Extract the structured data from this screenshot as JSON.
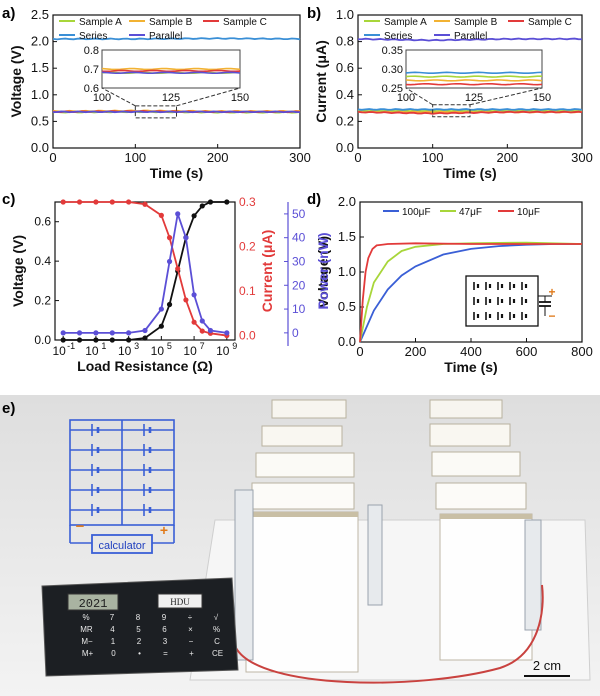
{
  "panels": {
    "a": {
      "label": "a)"
    },
    "b": {
      "label": "b)"
    },
    "c": {
      "label": "c)"
    },
    "d": {
      "label": "d)"
    },
    "e": {
      "label": "e)"
    }
  },
  "chart_data": [
    {
      "id": "a",
      "type": "line",
      "xlabel": "Time (s)",
      "ylabel": "Voltage (V)",
      "xlim": [
        0,
        300
      ],
      "ylim": [
        0,
        2.5
      ],
      "xticks": [
        0,
        100,
        200,
        300
      ],
      "yticks": [
        0.0,
        0.5,
        1.0,
        1.5,
        2.0,
        2.5
      ],
      "yticklabels": [
        "0.0",
        "0.5",
        "1.0",
        "1.5",
        "2.0",
        "2.5"
      ],
      "legend": [
        "Sample A",
        "Sample B",
        "Sample C",
        "Series",
        "Parallel"
      ],
      "series": [
        {
          "name": "Sample A",
          "color": "#a8d63a",
          "values": [
            0.67,
            0.68,
            0.67,
            0.67
          ]
        },
        {
          "name": "Sample B",
          "color": "#f2b233",
          "values": [
            0.69,
            0.7,
            0.69,
            0.69
          ]
        },
        {
          "name": "Sample C",
          "color": "#e23a3a",
          "values": [
            0.68,
            0.69,
            0.68,
            0.68
          ]
        },
        {
          "name": "Series",
          "color": "#3a8fd6",
          "values": [
            2.05,
            2.05,
            2.06,
            2.05
          ]
        },
        {
          "name": "Parallel",
          "color": "#5b4fd6",
          "values": [
            0.68,
            0.68,
            0.68,
            0.68
          ]
        }
      ],
      "x": [
        0,
        100,
        200,
        300
      ],
      "inset": {
        "xlim": [
          100,
          150
        ],
        "ylim": [
          0.6,
          0.8
        ],
        "xticks": [
          100,
          125,
          150
        ],
        "yticks": [
          0.6,
          0.7,
          0.8
        ],
        "yticklabels": [
          "0.6",
          "0.7",
          "0.8"
        ]
      }
    },
    {
      "id": "b",
      "type": "line",
      "xlabel": "Time (s)",
      "ylabel": "Current (μA)",
      "xlim": [
        0,
        300
      ],
      "ylim": [
        0,
        1.0
      ],
      "xticks": [
        0,
        100,
        200,
        300
      ],
      "yticks": [
        0.0,
        0.2,
        0.4,
        0.6,
        0.8,
        1.0
      ],
      "yticklabels": [
        "0.0",
        "0.2",
        "0.4",
        "0.6",
        "0.8",
        "1.0"
      ],
      "legend": [
        "Sample A",
        "Sample B",
        "Sample C",
        "Series",
        "Parallel"
      ],
      "series": [
        {
          "name": "Sample A",
          "color": "#a8d63a",
          "values": [
            0.28,
            0.28,
            0.28,
            0.28
          ]
        },
        {
          "name": "Sample B",
          "color": "#f2b233",
          "values": [
            0.27,
            0.27,
            0.27,
            0.27
          ]
        },
        {
          "name": "Sample C",
          "color": "#e23a3a",
          "values": [
            0.27,
            0.26,
            0.27,
            0.27
          ]
        },
        {
          "name": "Series",
          "color": "#3a8fd6",
          "values": [
            0.29,
            0.29,
            0.29,
            0.29
          ]
        },
        {
          "name": "Parallel",
          "color": "#5b4fd6",
          "values": [
            0.82,
            0.81,
            0.82,
            0.82
          ]
        }
      ],
      "x": [
        0,
        100,
        200,
        300
      ],
      "inset": {
        "xlim": [
          100,
          150
        ],
        "ylim": [
          0.25,
          0.35
        ],
        "xticks": [
          100,
          125,
          150
        ],
        "yticks": [
          0.25,
          0.3,
          0.35
        ],
        "yticklabels": [
          "0.25",
          "0.30",
          "0.35"
        ]
      }
    },
    {
      "id": "c",
      "type": "line",
      "xlabel": "Load Resistance (Ω)",
      "ylabel": "Voltage (V)",
      "ylabel_right": "Current (μA)",
      "ylabel_right2": "Power (nW)",
      "x_log_exponents": [
        -1,
        1,
        3,
        5,
        7,
        9
      ],
      "ylim": [
        0,
        0.7
      ],
      "yticks": [
        0.0,
        0.2,
        0.4,
        0.6
      ],
      "yticklabels": [
        "0.0",
        "0.2",
        "0.4",
        "0.6"
      ],
      "ylim_right": [
        0,
        0.3
      ],
      "yticks_right": [
        0.0,
        0.1,
        0.2,
        0.3
      ],
      "yticklabels_right": [
        "0.0",
        "0.1",
        "0.2",
        "0.3"
      ],
      "ylim_right2": [
        0,
        55
      ],
      "yticks_right2": [
        0,
        10,
        20,
        30,
        40,
        50
      ],
      "series": [
        {
          "name": "Voltage",
          "color": "#111111",
          "axis": "left",
          "log_x": [
            -1,
            0,
            1,
            2,
            3,
            4,
            5,
            5.5,
            6,
            6.5,
            7,
            7.5,
            8,
            9
          ],
          "values": [
            0.0,
            0.0,
            0.0,
            0.0,
            0.0,
            0.01,
            0.07,
            0.18,
            0.35,
            0.52,
            0.63,
            0.68,
            0.7,
            0.7
          ]
        },
        {
          "name": "Current",
          "color": "#e23a3a",
          "axis": "right",
          "log_x": [
            -1,
            0,
            1,
            2,
            3,
            4,
            5,
            5.5,
            6,
            6.5,
            7,
            7.5,
            8,
            9
          ],
          "values": [
            0.3,
            0.3,
            0.3,
            0.3,
            0.3,
            0.295,
            0.27,
            0.22,
            0.15,
            0.08,
            0.03,
            0.01,
            0.005,
            0.0
          ]
        },
        {
          "name": "Power",
          "color": "#5b4fd6",
          "axis": "right2",
          "log_x": [
            -1,
            0,
            1,
            2,
            3,
            4,
            5,
            5.5,
            6,
            6.5,
            7,
            7.5,
            8,
            9
          ],
          "values": [
            0,
            0,
            0,
            0,
            0,
            1,
            10,
            30,
            50,
            40,
            16,
            5,
            1,
            0
          ]
        }
      ]
    },
    {
      "id": "d",
      "type": "line",
      "xlabel": "Time (s)",
      "ylabel": "Voltage (V)",
      "xlim": [
        0,
        800
      ],
      "ylim": [
        0,
        2.0
      ],
      "xticks": [
        0,
        200,
        400,
        600,
        800
      ],
      "yticks": [
        0.0,
        0.5,
        1.0,
        1.5,
        2.0
      ],
      "yticklabels": [
        "0.0",
        "0.5",
        "1.0",
        "1.5",
        "2.0"
      ],
      "legend": [
        "100μF",
        "47μF",
        "10μF"
      ],
      "series": [
        {
          "name": "100μF",
          "color": "#3a5fd6",
          "x": [
            0,
            50,
            100,
            150,
            200,
            300,
            400,
            500,
            600,
            700,
            800
          ],
          "values": [
            0,
            0.45,
            0.75,
            0.95,
            1.08,
            1.25,
            1.33,
            1.37,
            1.39,
            1.4,
            1.4
          ]
        },
        {
          "name": "47μF",
          "color": "#a8d63a",
          "x": [
            0,
            25,
            50,
            100,
            150,
            200,
            300,
            400,
            600,
            800
          ],
          "values": [
            0,
            0.5,
            0.85,
            1.15,
            1.3,
            1.36,
            1.4,
            1.41,
            1.42,
            1.4
          ]
        },
        {
          "name": "10μF",
          "color": "#e23a3a",
          "x": [
            0,
            10,
            20,
            30,
            45,
            60,
            100,
            200,
            400,
            600,
            800
          ],
          "values": [
            0,
            0.6,
            1.0,
            1.2,
            1.33,
            1.38,
            1.4,
            1.41,
            1.4,
            1.4,
            1.4
          ]
        }
      ]
    }
  ],
  "photo": {
    "calculator_label": "calculator",
    "minus_sign": "−",
    "plus_sign": "+",
    "display_text": "2021",
    "brand_text": "HDU",
    "scale_bar": "2 cm",
    "keys": [
      [
        "%",
        "7",
        "8",
        "9",
        "÷",
        "√"
      ],
      [
        "MR",
        "4",
        "5",
        "6",
        "×",
        "%"
      ],
      [
        "M−",
        "1",
        "2",
        "3",
        "−",
        "C"
      ],
      [
        "M+",
        "0",
        "•",
        "=",
        "+",
        "CE"
      ]
    ]
  }
}
